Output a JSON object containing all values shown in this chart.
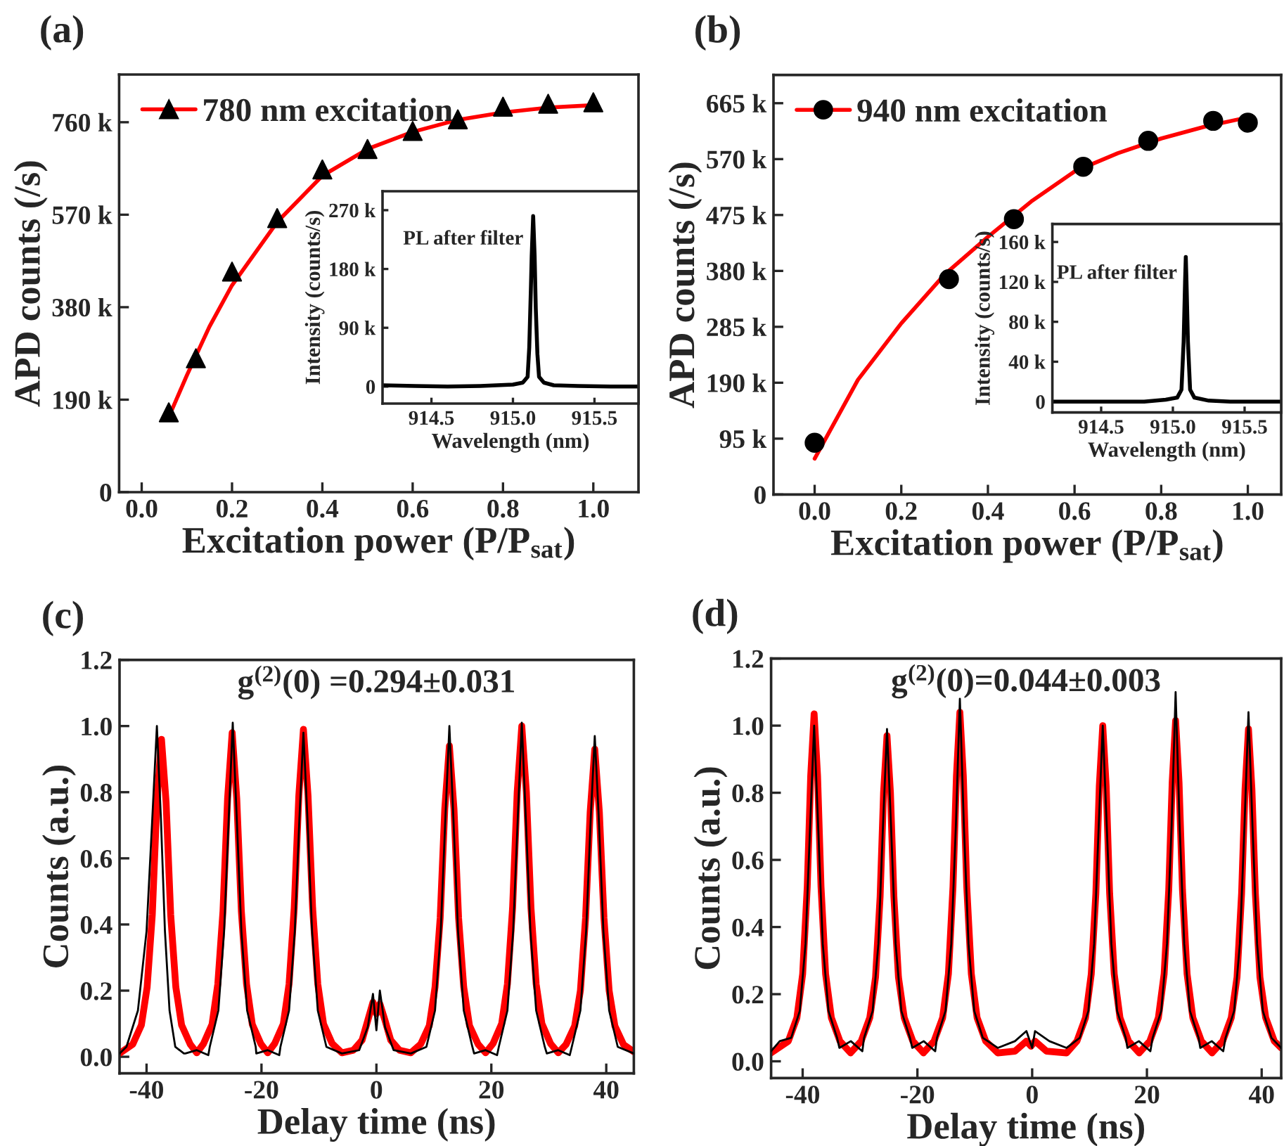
{
  "chart_data": [
    {
      "type": "line",
      "title": "(a)",
      "xlabel": "Excitation power (P/P$_{sat}$)",
      "ylabel": "APD counts (/s)",
      "xlim": [
        -0.05,
        1.1
      ],
      "xticks": [
        {
          "value": 0,
          "label": "0.0"
        },
        {
          "value": 0.2,
          "label": "0.2"
        },
        {
          "value": 0.4,
          "label": "0.4"
        },
        {
          "value": 0.6,
          "label": "0.6"
        },
        {
          "value": 0.8,
          "label": "0.8"
        },
        {
          "value": 1,
          "label": "1.0"
        }
      ],
      "ylim": [
        0,
        858000
      ],
      "yticks": [
        0,
        {
          "value": 190000,
          "label": "190 k"
        },
        {
          "value": 380000,
          "label": "380 k"
        },
        {
          "value": 570000,
          "label": "570 k"
        },
        {
          "value": 760000,
          "label": "760 k"
        }
      ],
      "legend": "top left",
      "series": [
        {
          "type": "scatter",
          "name": "780 nm excitation",
          "color": "#000000",
          "marker": "triangle",
          "x": [
            0.06,
            0.12,
            0.2,
            0.3,
            0.4,
            0.5,
            0.6,
            0.7,
            0.8,
            0.9,
            1.0
          ],
          "values": [
            164000,
            275000,
            453000,
            563000,
            663000,
            705000,
            742000,
            766000,
            792000,
            798000,
            801000
          ]
        },
        {
          "color": "#ff0000",
          "x": [
            0.065,
            0.1,
            0.15,
            0.2,
            0.3,
            0.4,
            0.5,
            0.6,
            0.7,
            0.8,
            0.9,
            1.0
          ],
          "values": [
            165000,
            240000,
            340000,
            425000,
            555000,
            650000,
            705000,
            740000,
            765000,
            780000,
            790000,
            795000
          ]
        }
      ]
    },
    {
      "type": "line",
      "xlabel": "Wavelength (nm)",
      "ylabel": "Intensity (counts/s)",
      "xlim": [
        914.2,
        915.77
      ],
      "xticks": [
        914.5,
        {
          "value": 915,
          "label": "915.0"
        },
        915.5
      ],
      "ylim": [
        -26000,
        299000
      ],
      "yticks": [
        0,
        {
          "value": 90000,
          "label": "90 k"
        },
        {
          "value": 180000,
          "label": "180 k"
        },
        {
          "value": 270000,
          "label": "270 k"
        }
      ],
      "annotations": [
        {
          "text": "PL after filter",
          "x": 915.1,
          "y": 225000
        }
      ],
      "series": [
        {
          "color": "#000000",
          "x": [
            914.2,
            914.4,
            914.6,
            914.8,
            915.0,
            915.06,
            915.09,
            915.1,
            915.11,
            915.115,
            915.124,
            915.133,
            915.14,
            915.15,
            915.16,
            915.19,
            915.25,
            915.4,
            915.6,
            915.77
          ],
          "values": [
            2000,
            1000,
            0,
            1000,
            3000,
            6000,
            15000,
            60000,
            150000,
            200000,
            261000,
            200000,
            120000,
            50000,
            15000,
            6000,
            2000,
            1000,
            0,
            0
          ]
        }
      ]
    },
    {
      "type": "line",
      "title": "(b)",
      "xlabel": "Excitation power (P/P$_{sat}$)",
      "ylabel": "APD counts (/s)",
      "xlim": [
        -0.095,
        1.077
      ],
      "xticks": [
        {
          "value": 0,
          "label": "0.0"
        },
        {
          "value": 0.2,
          "label": "0.2"
        },
        {
          "value": 0.4,
          "label": "0.4"
        },
        {
          "value": 0.6,
          "label": "0.6"
        },
        {
          "value": 0.8,
          "label": "0.8"
        },
        {
          "value": 1,
          "label": "1.0"
        }
      ],
      "ylim": [
        0,
        713000
      ],
      "yticks": [
        0,
        {
          "value": 95000,
          "label": "95 k"
        },
        {
          "value": 190000,
          "label": "190 k"
        },
        {
          "value": 285000,
          "label": "285 k"
        },
        {
          "value": 380000,
          "label": "380 k"
        },
        {
          "value": 475000,
          "label": "475 k"
        },
        {
          "value": 570000,
          "label": "570 k"
        },
        {
          "value": 665000,
          "label": "665 k"
        }
      ],
      "legend": "top left",
      "series": [
        {
          "type": "scatter",
          "name": "940 nm excitation",
          "color": "#000000",
          "marker": "circle",
          "x": [
            0.0,
            0.31,
            0.46,
            0.62,
            0.77,
            0.92,
            1.0
          ],
          "values": [
            88000,
            366000,
            468000,
            557000,
            601000,
            635000,
            632000
          ]
        },
        {
          "color": "#ff0000",
          "x": [
            0,
            0.1,
            0.2,
            0.3,
            0.4,
            0.5,
            0.6,
            0.7,
            0.8,
            0.9,
            1.0
          ],
          "values": [
            61000,
            195000,
            291000,
            374000,
            438000,
            498000,
            549000,
            580000,
            605000,
            625000,
            641000
          ]
        }
      ]
    },
    {
      "type": "line",
      "xlabel": "Wavelength (nm)",
      "ylabel": "Intensity (counts/s)",
      "xlim": [
        914.16,
        915.755
      ],
      "xticks": [
        914.5,
        {
          "value": 915,
          "label": "915.0"
        },
        915.5
      ],
      "ylim": [
        -10800,
        178000
      ],
      "yticks": [
        0,
        {
          "value": 40000,
          "label": "40 k"
        },
        {
          "value": 80000,
          "label": "80 k"
        },
        {
          "value": 120000,
          "label": "120 k"
        },
        {
          "value": 160000,
          "label": "160 k"
        }
      ],
      "annotations": [
        {
          "text": "PL after filter",
          "x": 915.07,
          "y": 128000
        }
      ],
      "series": [
        {
          "color": "#000000",
          "x": [
            914.16,
            914.4,
            914.6,
            914.8,
            914.95,
            915.03,
            915.06,
            915.075,
            915.085,
            915.09,
            915.095,
            915.105,
            915.12,
            915.15,
            915.25,
            915.4,
            915.6,
            915.755
          ],
          "values": [
            0,
            0,
            0,
            0,
            2000,
            4000,
            12000,
            60000,
            120000,
            145000,
            120000,
            60000,
            12000,
            4000,
            1000,
            0,
            0,
            0
          ]
        }
      ]
    },
    {
      "type": "line",
      "title": "(c)",
      "xlabel": "Delay time (ns)",
      "ylabel": "Counts (a.u.)",
      "xlim": [
        -44.7,
        44.8
      ],
      "xticks": [
        -40,
        -20,
        0,
        20,
        40
      ],
      "ylim": [
        -0.05,
        1.2
      ],
      "yticks": [
        {
          "value": 0,
          "label": "0.0"
        },
        0.2,
        0.4,
        0.6,
        0.8,
        {
          "value": 1,
          "label": "1.0"
        },
        1.2
      ],
      "annotations": [
        "g$^{(2)}$(0) =0.294±0.031"
      ],
      "series": [
        {
          "color": "#000000",
          "x": [
            -44.7,
            -43.5,
            -41.5,
            -40.0,
            -39.0,
            -38.2,
            -37.5,
            -36.8,
            -36.0,
            -35.0,
            -33.5,
            -33.25,
            -31.25,
            -29.25,
            -29.0,
            -27.5,
            -26.5,
            -25.7,
            -25.0,
            -24.3,
            -23.5,
            -22.5,
            -21.0,
            -20.9,
            -18.9,
            -16.9,
            -16.7,
            -15.2,
            -14.2,
            -13.4,
            -12.7,
            -12.0,
            -11.2,
            -10.2,
            -8.7,
            -6.0,
            -3.0,
            -1.5,
            -0.6,
            0,
            0.6,
            1.5,
            3.0,
            6.0,
            8.7,
            10.2,
            11.2,
            12.0,
            12.7,
            13.4,
            14.2,
            15.2,
            16.7,
            17.0,
            19.0,
            21.0,
            21.3,
            22.8,
            23.8,
            24.6,
            25.3,
            26.0,
            26.8,
            27.8,
            29.3,
            29.65,
            31.65,
            33.65,
            34.0,
            35.5,
            36.5,
            37.3,
            38.0,
            38.7,
            39.5,
            40.5,
            42.0,
            44.8
          ],
          "values": [
            0.01,
            0.03,
            0.14,
            0.38,
            0.72,
            1.0,
            0.72,
            0.38,
            0.14,
            0.03,
            0.01,
            0.01,
            0.02,
            0.005,
            0.03,
            0.14,
            0.38,
            0.72,
            1.01,
            0.72,
            0.38,
            0.14,
            0.03,
            0.01,
            0.02,
            0.005,
            0.03,
            0.14,
            0.38,
            0.72,
            0.98,
            0.72,
            0.38,
            0.14,
            0.03,
            0.01,
            0.02,
            0.09,
            0.19,
            0.08,
            0.2,
            0.09,
            0.02,
            0.01,
            0.03,
            0.14,
            0.38,
            0.72,
            1.0,
            0.72,
            0.38,
            0.14,
            0.03,
            0.01,
            0.02,
            0.005,
            0.03,
            0.14,
            0.38,
            0.72,
            1.01,
            0.72,
            0.38,
            0.14,
            0.03,
            0.01,
            0.02,
            0.005,
            0.03,
            0.14,
            0.38,
            0.72,
            0.97,
            0.72,
            0.38,
            0.14,
            0.03,
            0.01
          ]
        },
        {
          "color": "#ff0000",
          "x": [
            -44.7,
            -42.4,
            -40.9,
            -39.9,
            -39.0,
            -38.2,
            -37.4,
            -36.6,
            -35.8,
            -34.9,
            -33.9,
            -32.4,
            -31.25,
            -30.1,
            -28.6,
            -27.6,
            -26.7,
            -25.9,
            -25.1,
            -24.3,
            -23.5,
            -22.6,
            -21.6,
            -20.1,
            -18.9,
            -17.7,
            -16.2,
            -15.2,
            -14.3,
            -13.5,
            -12.7,
            -11.9,
            -11.1,
            -10.2,
            -9.2,
            -7.7,
            -6.0,
            -4.0,
            -2.5,
            -1.5,
            -0.6,
            0,
            0.6,
            1.5,
            2.5,
            4.0,
            6.0,
            7.7,
            9.2,
            10.2,
            11.1,
            11.9,
            12.7,
            13.5,
            14.3,
            15.2,
            16.2,
            17.7,
            19.0,
            20.3,
            21.8,
            22.8,
            23.7,
            24.5,
            25.3,
            26.1,
            26.9,
            27.8,
            28.8,
            30.3,
            31.65,
            33.0,
            34.5,
            35.5,
            36.4,
            37.2,
            38.0,
            38.8,
            39.6,
            40.5,
            41.5,
            43.0,
            44.8
          ],
          "values": [
            0.01,
            0.038,
            0.096,
            0.21,
            0.43,
            0.77,
            0.96,
            0.77,
            0.43,
            0.21,
            0.096,
            0.038,
            0.012,
            0.039,
            0.098,
            0.22,
            0.44,
            0.78,
            0.98,
            0.78,
            0.44,
            0.22,
            0.098,
            0.039,
            0.012,
            0.04,
            0.099,
            0.22,
            0.45,
            0.79,
            0.99,
            0.79,
            0.45,
            0.22,
            0.099,
            0.04,
            0.012,
            0.02,
            0.05,
            0.11,
            0.165,
            0.13,
            0.16,
            0.11,
            0.05,
            0.02,
            0.012,
            0.038,
            0.094,
            0.21,
            0.42,
            0.75,
            0.94,
            0.75,
            0.42,
            0.21,
            0.094,
            0.038,
            0.012,
            0.04,
            0.1,
            0.22,
            0.45,
            0.8,
            1.0,
            0.8,
            0.45,
            0.22,
            0.1,
            0.04,
            0.012,
            0.037,
            0.093,
            0.2,
            0.42,
            0.74,
            0.93,
            0.74,
            0.42,
            0.2,
            0.093,
            0.037,
            0.015
          ]
        }
      ]
    },
    {
      "type": "line",
      "title": "(d)",
      "xlabel": "Delay time (ns)",
      "ylabel": "Counts (a.u.)",
      "xlim": [
        -45.5,
        43.4
      ],
      "xticks": [
        -40,
        -20,
        0,
        20,
        40
      ],
      "ylim": [
        -0.05,
        1.2
      ],
      "yticks": [
        {
          "value": 0,
          "label": "0.0"
        },
        0.2,
        0.4,
        0.6,
        0.8,
        {
          "value": 1,
          "label": "1.0"
        },
        1.2
      ],
      "annotations": [
        "g$^{(2)}$(0)=0.044±0.003"
      ],
      "series": [
        {
          "color": "#000000",
          "x": [
            -45.5,
            -44.0,
            -42.0,
            -40.5,
            -39.5,
            -38.7,
            -38.0,
            -37.3,
            -36.5,
            -35.5,
            -34.0,
            -33.6,
            -31.6,
            -29.6,
            -29.3,
            -27.8,
            -26.8,
            -26.0,
            -25.3,
            -24.6,
            -23.8,
            -22.8,
            -21.3,
            -20.9,
            -18.9,
            -16.9,
            -16.6,
            -15.1,
            -14.1,
            -13.3,
            -12.6,
            -11.9,
            -11.1,
            -10.1,
            -8.6,
            -6.0,
            -3.0,
            -1.0,
            0,
            0.5,
            3.0,
            6.0,
            8.3,
            9.8,
            10.8,
            11.6,
            12.3,
            13.0,
            13.8,
            14.8,
            16.3,
            16.6,
            18.6,
            20.6,
            21.0,
            22.5,
            23.5,
            24.3,
            25.0,
            25.7,
            26.5,
            27.5,
            29.0,
            29.3,
            31.3,
            33.3,
            33.7,
            35.2,
            36.2,
            37.0,
            37.7,
            38.4,
            39.2,
            40.2,
            41.7,
            43.4
          ],
          "values": [
            0.03,
            0.06,
            0.07,
            0.15,
            0.35,
            0.7,
            1.0,
            0.7,
            0.35,
            0.15,
            0.07,
            0.04,
            0.06,
            0.03,
            0.07,
            0.15,
            0.35,
            0.7,
            0.99,
            0.7,
            0.35,
            0.15,
            0.07,
            0.04,
            0.06,
            0.03,
            0.07,
            0.15,
            0.35,
            0.7,
            1.08,
            0.7,
            0.35,
            0.15,
            0.07,
            0.04,
            0.06,
            0.09,
            0.04,
            0.09,
            0.06,
            0.04,
            0.07,
            0.15,
            0.35,
            0.7,
            1.0,
            0.7,
            0.35,
            0.15,
            0.07,
            0.04,
            0.06,
            0.03,
            0.07,
            0.15,
            0.35,
            0.7,
            1.1,
            0.7,
            0.35,
            0.15,
            0.07,
            0.04,
            0.06,
            0.03,
            0.07,
            0.15,
            0.35,
            0.7,
            1.04,
            0.7,
            0.35,
            0.15,
            0.07,
            0.04
          ]
        },
        {
          "color": "#ff0000",
          "x": [
            -45.5,
            -42.5,
            -41.0,
            -40.0,
            -39.2,
            -38.6,
            -38.0,
            -37.4,
            -36.8,
            -36.0,
            -35.0,
            -33.5,
            -31.65,
            -29.8,
            -28.3,
            -27.3,
            -26.5,
            -25.9,
            -25.3,
            -24.7,
            -24.1,
            -23.3,
            -22.3,
            -20.8,
            -18.95,
            -17.1,
            -15.6,
            -14.6,
            -13.8,
            -13.2,
            -12.6,
            -12.0,
            -11.4,
            -10.6,
            -9.6,
            -8.1,
            -6.0,
            -3.0,
            -1.0,
            -0.2,
            0.5,
            2.5,
            6.0,
            7.8,
            9.3,
            10.3,
            11.1,
            11.7,
            12.3,
            12.9,
            13.5,
            14.3,
            15.3,
            16.8,
            18.65,
            20.5,
            22.0,
            23.0,
            23.8,
            24.4,
            25.0,
            25.6,
            26.2,
            27.0,
            28.0,
            29.5,
            31.35,
            33.2,
            34.7,
            35.7,
            36.5,
            37.1,
            37.7,
            38.3,
            38.9,
            39.7,
            40.7,
            42.2,
            43.4
          ],
          "values": [
            0.025,
            0.06,
            0.13,
            0.26,
            0.52,
            0.85,
            1.035,
            0.85,
            0.52,
            0.26,
            0.13,
            0.06,
            0.025,
            0.06,
            0.13,
            0.25,
            0.49,
            0.8,
            0.97,
            0.8,
            0.49,
            0.25,
            0.13,
            0.06,
            0.025,
            0.06,
            0.13,
            0.26,
            0.52,
            0.85,
            1.04,
            0.85,
            0.52,
            0.26,
            0.13,
            0.06,
            0.025,
            0.03,
            0.06,
            0.045,
            0.06,
            0.03,
            0.025,
            0.06,
            0.13,
            0.26,
            0.5,
            0.82,
            1.0,
            0.82,
            0.5,
            0.26,
            0.13,
            0.06,
            0.025,
            0.06,
            0.13,
            0.26,
            0.51,
            0.83,
            1.015,
            0.83,
            0.51,
            0.26,
            0.13,
            0.06,
            0.025,
            0.06,
            0.13,
            0.25,
            0.5,
            0.81,
            0.99,
            0.81,
            0.5,
            0.25,
            0.13,
            0.06,
            0.04
          ]
        }
      ]
    }
  ]
}
